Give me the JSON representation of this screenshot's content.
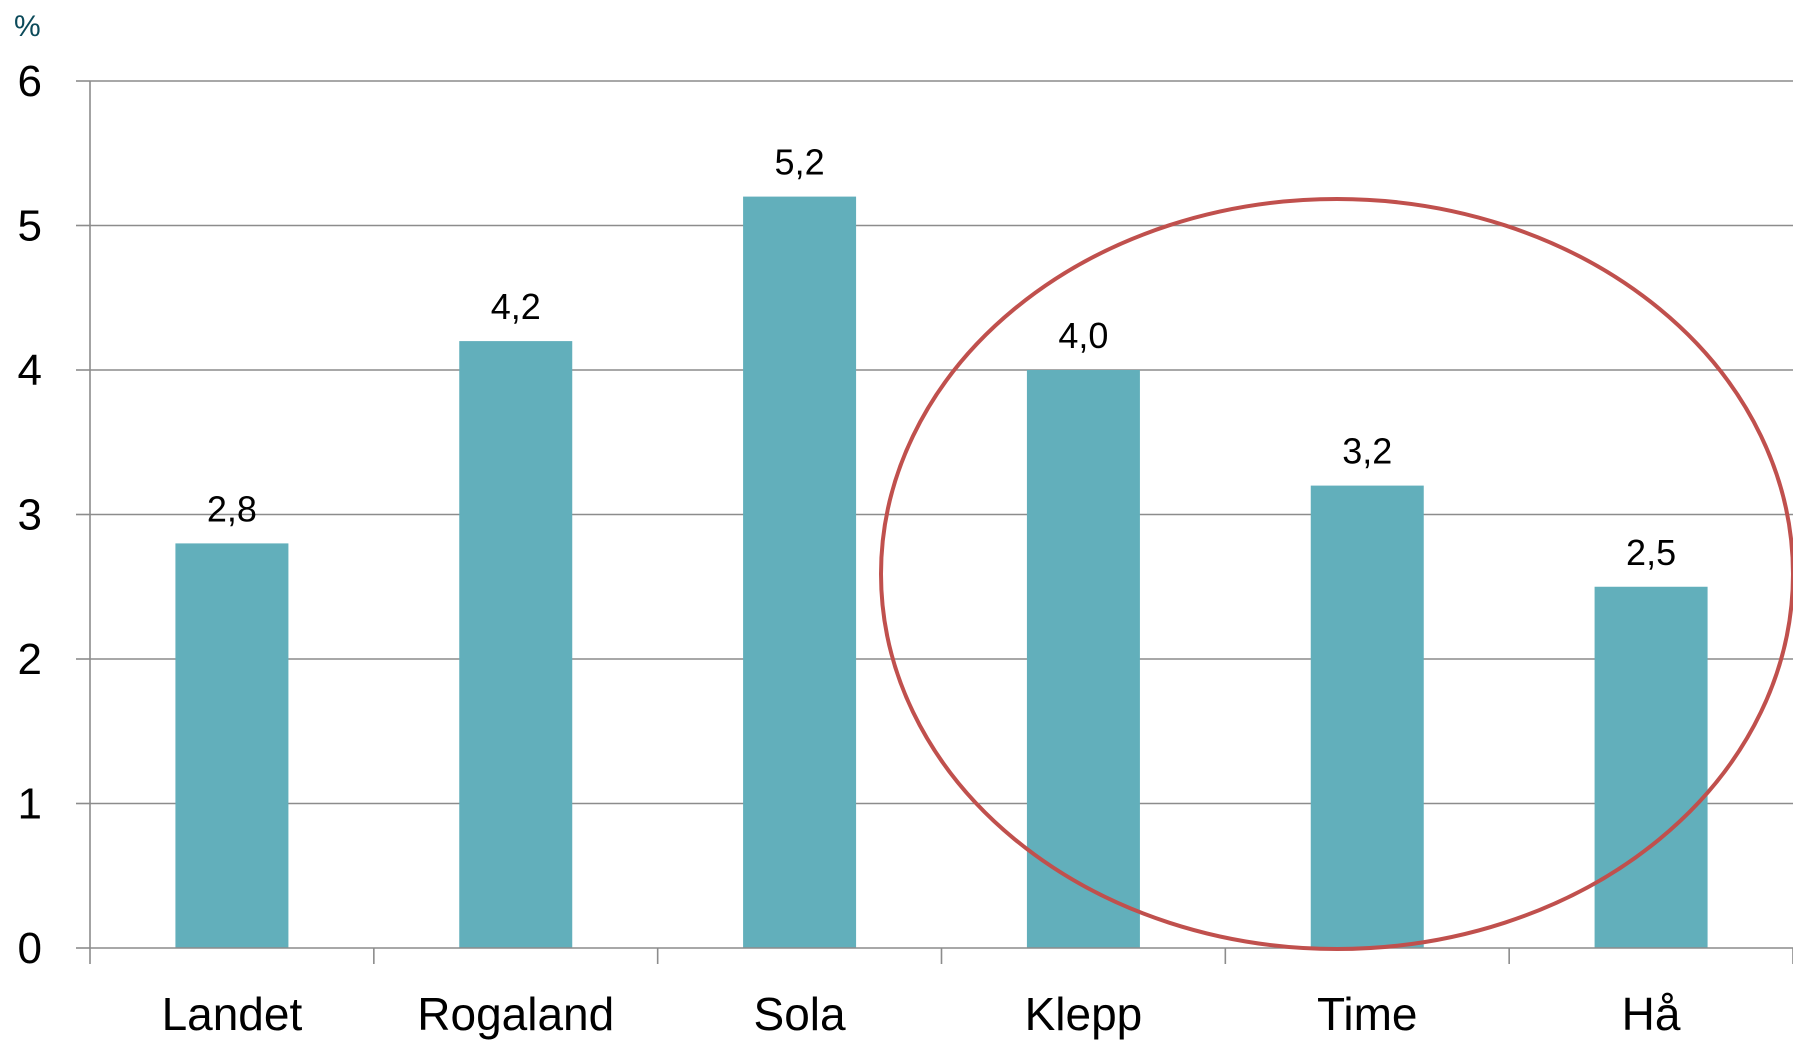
{
  "chart_data": {
    "type": "bar",
    "categories": [
      "Landet",
      "Rogaland",
      "Sola",
      "Klepp",
      "Time",
      "Hå"
    ],
    "values": [
      2.8,
      4.2,
      5.2,
      4.0,
      3.2,
      2.5
    ],
    "data_labels": [
      "2,8",
      "4,2",
      "5,2",
      "4,0",
      "3,2",
      "2,5"
    ],
    "y_unit": "%",
    "yticks": [
      "0",
      "1",
      "2",
      "3",
      "4",
      "5",
      "6"
    ],
    "ylim": [
      0,
      6
    ],
    "grid": true,
    "legend": false,
    "colors": {
      "bar": "#62afbb",
      "grid": "#8c8c8c",
      "highlight_ellipse": "#c0504d"
    },
    "annotation": {
      "shape": "ellipse",
      "highlights": [
        "Klepp",
        "Time",
        "Hå"
      ]
    }
  }
}
